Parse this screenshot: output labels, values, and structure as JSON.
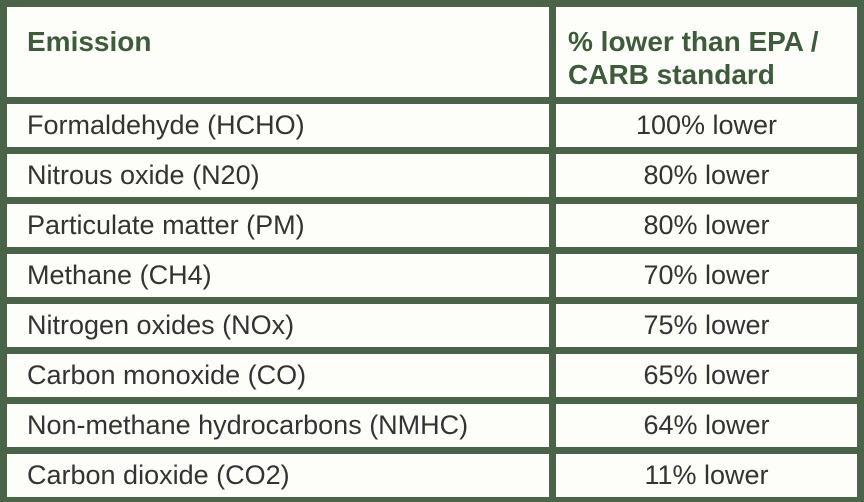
{
  "table": {
    "header": [
      "Emission",
      "% lower than EPA / CARB standard"
    ],
    "rows": [
      [
        "Formaldehyde (HCHO)",
        "100% lower"
      ],
      [
        "Nitrous oxide (N20)",
        "80% lower"
      ],
      [
        "Particulate matter (PM)",
        "80% lower"
      ],
      [
        "Methane (CH4)",
        "70% lower"
      ],
      [
        "Nitrogen oxides (NOx)",
        "75% lower"
      ],
      [
        "Carbon monoxide (CO)",
        "65% lower"
      ],
      [
        "Non-methane hydrocarbons (NMHC)",
        "64% lower"
      ],
      [
        "Carbon dioxide (CO2)",
        "11% lower"
      ]
    ]
  }
}
